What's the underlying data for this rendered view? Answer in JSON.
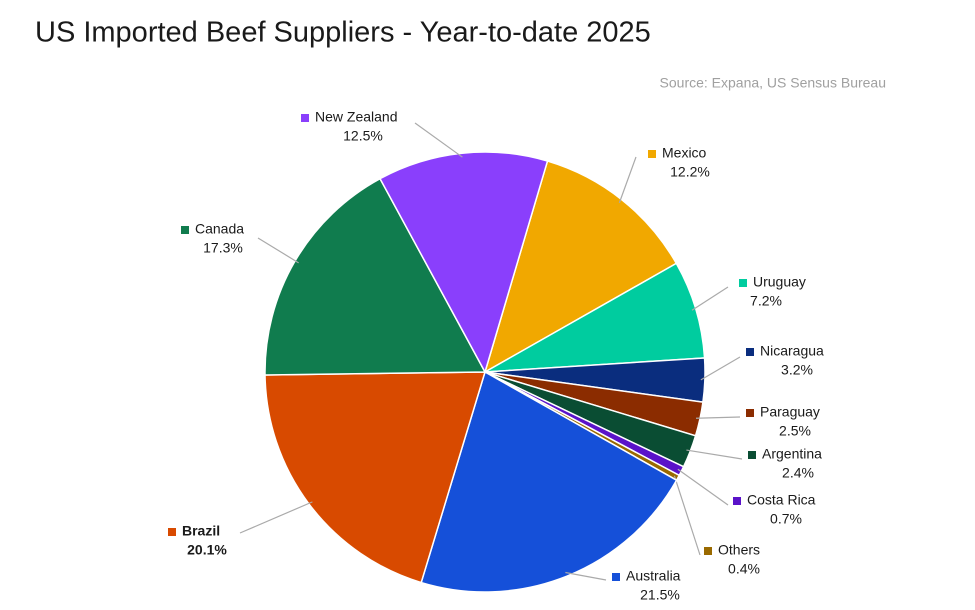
{
  "chart_data": {
    "type": "pie",
    "title": "US Imported Beef Suppliers - Year-to-date 2025",
    "source": "Source: Expana, US Sensus Bureau",
    "categories": [
      "Mexico",
      "Uruguay",
      "Nicaragua",
      "Paraguay",
      "Argentina",
      "Costa Rica",
      "Others",
      "Australia",
      "Brazil",
      "Canada",
      "New Zealand"
    ],
    "values": [
      12.2,
      7.2,
      3.2,
      2.5,
      2.4,
      0.7,
      0.4,
      21.5,
      20.1,
      17.3,
      12.5
    ],
    "value_labels": [
      "12.2%",
      "7.2%",
      "3.2%",
      "2.5%",
      "2.4%",
      "0.7%",
      "0.4%",
      "21.5%",
      "20.1%",
      "17.3%",
      "12.5%"
    ],
    "colors": [
      "#f1a800",
      "#00cc9f",
      "#0a2d7e",
      "#8b2c00",
      "#0a4d33",
      "#5a12c9",
      "#9a6a00",
      "#1550d9",
      "#d84a00",
      "#107c4e",
      "#8a3ffc"
    ]
  }
}
